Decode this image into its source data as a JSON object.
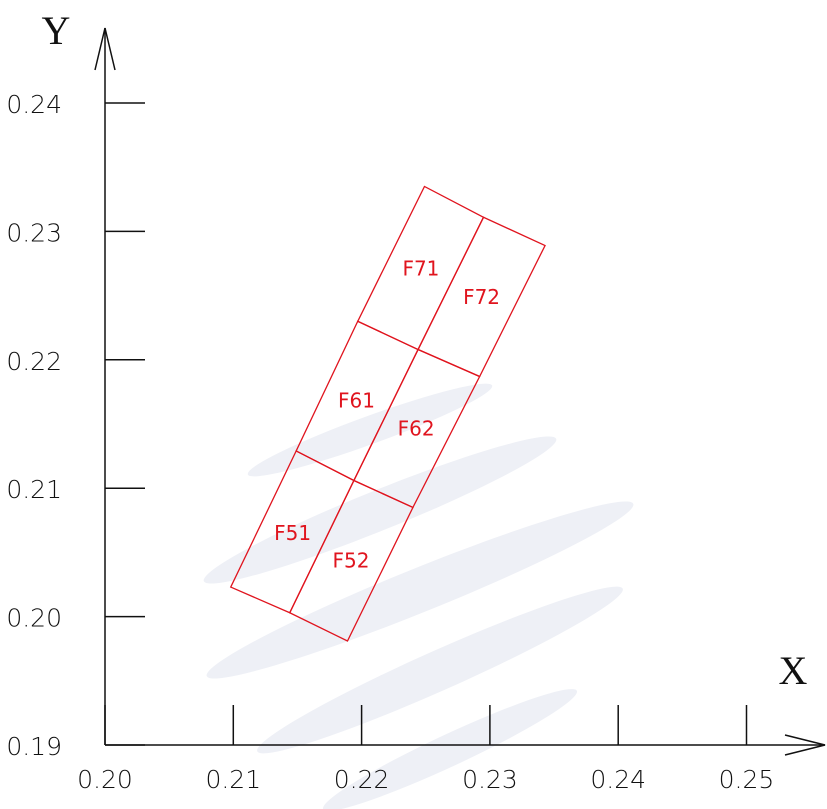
{
  "chart_data": {
    "type": "polygon",
    "xlabel": "X",
    "ylabel": "Y",
    "xlim": [
      0.2,
      0.256
    ],
    "ylim": [
      0.19,
      0.246
    ],
    "xticks": [
      {
        "value": 0.2,
        "label": "0.20"
      },
      0.21,
      0.22,
      0.23,
      0.24,
      0.25
    ],
    "yticks": [
      0.19,
      {
        "value": 0.2,
        "label": "0.20"
      },
      0.21,
      0.22,
      0.23,
      0.24
    ],
    "color": "#e0141e",
    "cells": [
      {
        "label": "F51",
        "x": [
          0.2098,
          0.2144,
          0.2194,
          0.2149
        ],
        "y": [
          0.2023,
          0.2003,
          0.2106,
          0.2129
        ]
      },
      {
        "label": "F52",
        "x": [
          0.2144,
          0.2189,
          0.224,
          0.2194
        ],
        "y": [
          0.2003,
          0.1981,
          0.2085,
          0.2106
        ]
      },
      {
        "label": "F61",
        "x": [
          0.2149,
          0.2194,
          0.2244,
          0.2197
        ],
        "y": [
          0.2129,
          0.2106,
          0.2208,
          0.223
        ]
      },
      {
        "label": "F62",
        "x": [
          0.2194,
          0.224,
          0.2292,
          0.2244
        ],
        "y": [
          0.2106,
          0.2085,
          0.2187,
          0.2208
        ]
      },
      {
        "label": "F71",
        "x": [
          0.2197,
          0.2244,
          0.2295,
          0.2249
        ],
        "y": [
          0.223,
          0.2208,
          0.2311,
          0.2335
        ]
      },
      {
        "label": "F72",
        "x": [
          0.2244,
          0.2292,
          0.2343,
          0.2295
        ],
        "y": [
          0.2208,
          0.2187,
          0.2289,
          0.2311
        ]
      }
    ]
  }
}
